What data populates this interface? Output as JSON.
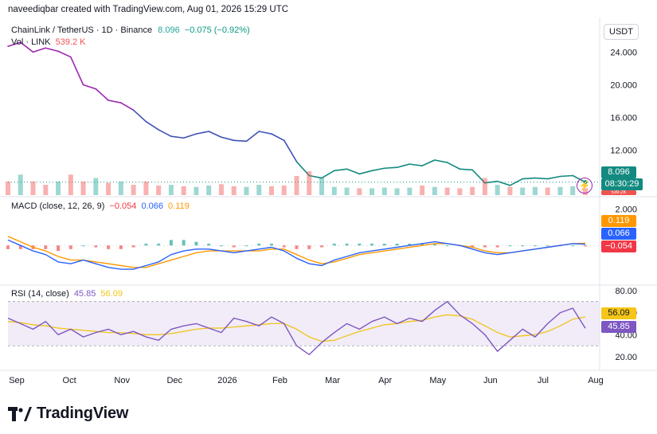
{
  "header": {
    "attribution": "naveediqbar created with TradingView.com, Aug 01, 2026 15:29 UTC"
  },
  "legend": {
    "symbol": "ChainLink / TetherUS · 1D · Binance",
    "price": "8.096",
    "change": "−0.075 (−0.92%)",
    "vol_label": "Vol · LINK",
    "vol_value": "539.2 K",
    "macd_label": "MACD (close, 12, 26, 9)",
    "macd_hist": "−0.054",
    "macd_line": "0.066",
    "macd_signal": "0.119",
    "rsi_label": "RSI (14, close)",
    "rsi_value": "45.85",
    "rsi_ma": "56.09"
  },
  "currency_button": "USDT",
  "price_tags": {
    "last": "8.096",
    "countdown": "08:30:29",
    "vol_partial": "539.2K"
  },
  "macd_tags": {
    "signal": "0.119",
    "line": "0.066",
    "hist": "−0.054"
  },
  "rsi_tags": {
    "ma": "56.09",
    "rsi": "45.85"
  },
  "colors": {
    "up": "#26a69a",
    "down": "#ef5350",
    "macd": "#2962ff",
    "signal": "#ff9800",
    "rsi": "#7e57c2",
    "rsi_ma": "#f0c419",
    "rsi_band": "#ede7f6"
  },
  "brand": {
    "name": "TradingView",
    "logo_icon": "tradingview-logo-icon"
  },
  "icons": {
    "alert": "lightning-alert-icon"
  },
  "chart_data": [
    {
      "type": "line",
      "title": "ChainLink / TetherUS · 1D · Binance",
      "x_ticks": [
        "Sep",
        "Oct",
        "Nov",
        "Dec",
        "2026",
        "Feb",
        "Mar",
        "Apr",
        "May",
        "Jun",
        "Jul",
        "Aug"
      ],
      "y_ticks": [
        "24.000",
        "20.000",
        "16.000",
        "12.000"
      ],
      "ylim": [
        7.0,
        25.5
      ],
      "last_price": 8.096,
      "series": [
        {
          "values": [
            24.7,
            25.2,
            24.0,
            24.5,
            24.1,
            23.4,
            20.0,
            19.5,
            18.1,
            17.8,
            16.9,
            15.5,
            14.5,
            13.7,
            13.5,
            14.0,
            14.3,
            13.6,
            13.2,
            13.1,
            14.3,
            14.0,
            13.2,
            10.6,
            8.9,
            8.6,
            9.5,
            9.7,
            9.1,
            9.5,
            9.8,
            9.9,
            10.3,
            10.1,
            10.8,
            10.5,
            9.7,
            9.6,
            8.0,
            8.2,
            7.7,
            8.5,
            8.6,
            8.5,
            8.8,
            8.9,
            8.1
          ]
        }
      ]
    },
    {
      "type": "bar",
      "title": "Vol · LINK",
      "values": [
        2,
        3,
        2,
        1.5,
        2,
        3,
        2,
        2.5,
        1.8,
        2,
        1.5,
        2,
        1.4,
        1.5,
        1.3,
        1.2,
        1.4,
        1.6,
        1.3,
        1.2,
        1.5,
        1.3,
        1.4,
        2.8,
        3.5,
        2.5,
        1.2,
        1.1,
        1.0,
        1.0,
        1.1,
        1.0,
        1.1,
        1.4,
        1.2,
        1.1,
        1.0,
        1.2,
        2.5,
        1.5,
        1.2,
        1.1,
        1.2,
        1.1,
        1.2,
        1.3,
        1.0
      ],
      "directions": [
        "d",
        "u",
        "d",
        "d",
        "u",
        "d",
        "d",
        "u",
        "d",
        "u",
        "d",
        "d",
        "d",
        "u",
        "d",
        "u",
        "u",
        "d",
        "d",
        "u",
        "u",
        "d",
        "d",
        "d",
        "d",
        "u",
        "u",
        "u",
        "d",
        "u",
        "u",
        "u",
        "u",
        "d",
        "u",
        "d",
        "d",
        "d",
        "d",
        "u",
        "d",
        "u",
        "u",
        "d",
        "u",
        "u",
        "d"
      ]
    },
    {
      "type": "line",
      "title": "MACD (close, 12, 26, 9)",
      "y_ticks": [
        "2.000"
      ],
      "ylim": [
        -1.6,
        2.1
      ],
      "series": [
        {
          "name": "MACD",
          "values": [
            0.3,
            0.0,
            -0.3,
            -0.5,
            -0.9,
            -1.0,
            -0.8,
            -1.0,
            -1.2,
            -1.3,
            -1.3,
            -1.1,
            -0.9,
            -0.5,
            -0.3,
            -0.2,
            -0.2,
            -0.3,
            -0.4,
            -0.3,
            -0.2,
            -0.1,
            -0.3,
            -0.7,
            -1.0,
            -1.1,
            -0.8,
            -0.6,
            -0.4,
            -0.3,
            -0.2,
            -0.1,
            0.0,
            0.1,
            0.2,
            0.1,
            0.0,
            -0.2,
            -0.4,
            -0.5,
            -0.4,
            -0.3,
            -0.2,
            -0.1,
            0.0,
            0.1,
            0.066
          ]
        },
        {
          "name": "Signal",
          "values": [
            0.5,
            0.2,
            -0.1,
            -0.3,
            -0.6,
            -0.8,
            -0.8,
            -0.9,
            -1.0,
            -1.1,
            -1.2,
            -1.2,
            -1.0,
            -0.8,
            -0.6,
            -0.4,
            -0.3,
            -0.3,
            -0.3,
            -0.3,
            -0.3,
            -0.2,
            -0.2,
            -0.5,
            -0.8,
            -1.0,
            -0.9,
            -0.7,
            -0.5,
            -0.4,
            -0.3,
            -0.2,
            -0.1,
            0.0,
            0.1,
            0.1,
            0.0,
            -0.1,
            -0.3,
            -0.4,
            -0.4,
            -0.3,
            -0.2,
            -0.1,
            0.0,
            0.1,
            0.119
          ]
        },
        {
          "name": "Histogram",
          "values": [
            -0.2,
            -0.2,
            -0.2,
            -0.2,
            -0.3,
            -0.2,
            0.0,
            -0.1,
            -0.2,
            -0.2,
            -0.1,
            0.1,
            0.1,
            0.3,
            0.3,
            0.2,
            0.1,
            0.0,
            -0.1,
            0.0,
            0.1,
            0.1,
            -0.1,
            -0.2,
            -0.2,
            -0.1,
            0.1,
            0.1,
            0.1,
            0.1,
            0.1,
            0.1,
            0.1,
            0.1,
            0.1,
            0.0,
            0.0,
            -0.1,
            -0.1,
            -0.1,
            0.0,
            0.0,
            0.0,
            0.0,
            0.0,
            0.0,
            -0.054
          ]
        }
      ],
      "last_values": {
        "signal": 0.119,
        "macd": 0.066,
        "histogram": -0.054
      }
    },
    {
      "type": "line",
      "title": "RSI (14, close)",
      "y_ticks": [
        "80.00",
        "60.00",
        "40.00",
        "20.00"
      ],
      "ylim": [
        10,
        82
      ],
      "bands": [
        30,
        70
      ],
      "series": [
        {
          "name": "RSI",
          "values": [
            55,
            50,
            45,
            52,
            40,
            45,
            38,
            42,
            45,
            40,
            43,
            38,
            35,
            45,
            48,
            50,
            46,
            42,
            55,
            52,
            48,
            56,
            50,
            30,
            22,
            33,
            42,
            50,
            45,
            52,
            56,
            50,
            55,
            52,
            62,
            70,
            58,
            50,
            40,
            25,
            35,
            45,
            38,
            50,
            60,
            64,
            45.85
          ]
        },
        {
          "name": "RSI-based MA",
          "values": [
            52,
            51,
            49,
            48,
            46,
            45,
            44,
            43,
            42,
            42,
            41,
            40,
            40,
            41,
            43,
            45,
            46,
            46,
            47,
            48,
            49,
            50,
            50,
            45,
            38,
            34,
            35,
            39,
            43,
            46,
            49,
            50,
            52,
            53,
            56,
            58,
            57,
            54,
            48,
            42,
            38,
            39,
            40,
            43,
            48,
            54,
            56.09
          ]
        }
      ],
      "last_values": {
        "rsi": 45.85,
        "ma": 56.09
      }
    }
  ]
}
